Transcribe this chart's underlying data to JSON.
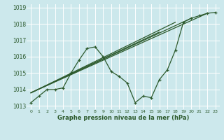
{
  "title": "Graphe pression niveau de la mer (hPa)",
  "bg_color": "#cce8ec",
  "grid_color": "#ffffff",
  "line_color": "#2d5a2d",
  "xlim": [
    -0.5,
    23.5
  ],
  "ylim": [
    1012.8,
    1019.2
  ],
  "xtick_labels": [
    "0",
    "1",
    "2",
    "3",
    "4",
    "5",
    "6",
    "7",
    "8",
    "9",
    "10",
    "11",
    "12",
    "13",
    "14",
    "15",
    "16",
    "17",
    "18",
    "19",
    "20",
    "21",
    "22",
    "23"
  ],
  "xticks": [
    0,
    1,
    2,
    3,
    4,
    5,
    6,
    7,
    8,
    9,
    10,
    11,
    12,
    13,
    14,
    15,
    16,
    17,
    18,
    19,
    20,
    21,
    22,
    23
  ],
  "yticks": [
    1013,
    1014,
    1015,
    1016,
    1017,
    1018,
    1019
  ],
  "ytick_labels": [
    "1013",
    "1014",
    "1015",
    "1016",
    "1017",
    "1018",
    "1019"
  ],
  "main_x": [
    0,
    1,
    2,
    3,
    4,
    5,
    6,
    7,
    8,
    9,
    10,
    11,
    12,
    13,
    14,
    15,
    16,
    17,
    18,
    19,
    20,
    21,
    22,
    23
  ],
  "main_y": [
    1013.2,
    1013.6,
    1014.0,
    1014.0,
    1014.1,
    1015.0,
    1015.8,
    1016.5,
    1016.6,
    1016.0,
    1015.1,
    1014.8,
    1014.4,
    1013.2,
    1013.6,
    1013.5,
    1014.6,
    1015.2,
    1016.4,
    1018.1,
    1018.35,
    1018.5,
    1018.65,
    1018.7
  ],
  "linear_lines": [
    {
      "x": [
        0,
        22
      ],
      "y": [
        1013.8,
        1018.65
      ]
    },
    {
      "x": [
        0,
        20
      ],
      "y": [
        1013.8,
        1018.35
      ]
    },
    {
      "x": [
        0,
        18
      ],
      "y": [
        1013.8,
        1018.1
      ]
    },
    {
      "x": [
        0,
        16
      ],
      "y": [
        1013.8,
        1017.5
      ]
    }
  ]
}
